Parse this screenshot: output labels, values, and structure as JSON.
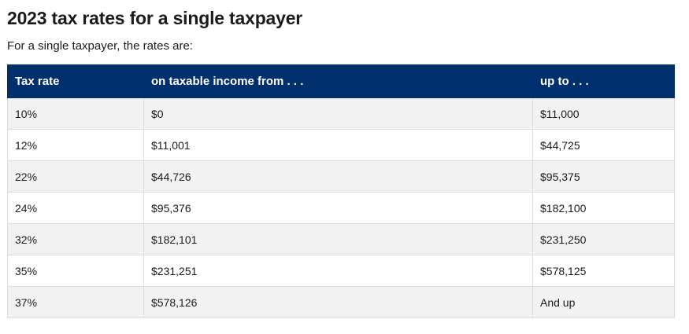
{
  "heading": "2023 tax rates for a single taxpayer",
  "intro": "For a single taxpayer, the rates are:",
  "table": {
    "headers": [
      "Tax rate",
      "on taxable income from . . .",
      "up to . . ."
    ],
    "rows": [
      [
        "10%",
        "$0",
        "$11,000"
      ],
      [
        "12%",
        "$11,001",
        "$44,725"
      ],
      [
        "22%",
        "$44,726",
        "$95,375"
      ],
      [
        "24%",
        "$95,376",
        "$182,100"
      ],
      [
        "32%",
        "$182,101",
        "$231,250"
      ],
      [
        "35%",
        "$231,251",
        "$578,125"
      ],
      [
        "37%",
        "$578,126",
        "And up"
      ]
    ]
  },
  "colors": {
    "header_bg": "#00306c",
    "header_text": "#ffffff",
    "row_alt_bg": "#f2f2f2"
  }
}
